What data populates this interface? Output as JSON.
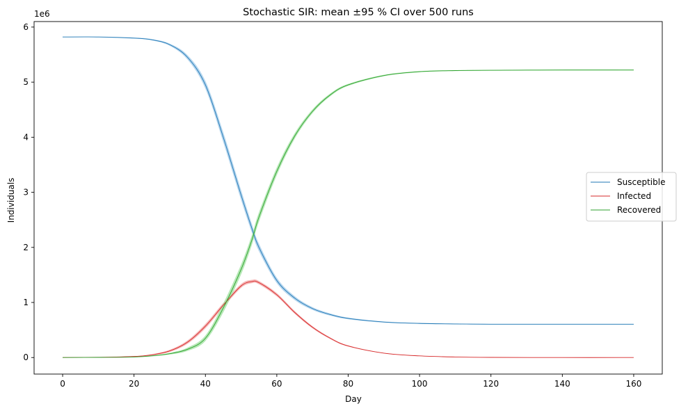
{
  "chart_data": {
    "type": "line",
    "title": "Stochastic SIR: mean ±95 % CI over 500 runs",
    "xlabel": "Day",
    "ylabel": "Individuals",
    "y_offset_label": "1e6",
    "xlim": [
      -8,
      168
    ],
    "ylim": [
      -0.3,
      6.1
    ],
    "y_scale_multiplier": 1000000,
    "xticks": [
      0,
      20,
      40,
      60,
      80,
      100,
      120,
      140,
      160
    ],
    "xtick_labels": [
      "0",
      "20",
      "40",
      "60",
      "80",
      "100",
      "120",
      "140",
      "160"
    ],
    "yticks": [
      0,
      1,
      2,
      3,
      4,
      5,
      6
    ],
    "ytick_labels": [
      "0",
      "1",
      "2",
      "3",
      "4",
      "5",
      "6"
    ],
    "grid": false,
    "legend_position": "center-right",
    "x": [
      0,
      10,
      20,
      25,
      30,
      35,
      40,
      45,
      50,
      53,
      55,
      60,
      65,
      70,
      75,
      80,
      90,
      100,
      110,
      120,
      140,
      160
    ],
    "series": [
      {
        "name": "Susceptible",
        "color": "#1f77b4",
        "band_color": "#9ec8e8",
        "values": [
          5.82,
          5.82,
          5.8,
          5.77,
          5.68,
          5.45,
          4.95,
          4.0,
          2.95,
          2.35,
          2.0,
          1.4,
          1.08,
          0.89,
          0.78,
          0.71,
          0.645,
          0.62,
          0.61,
          0.605,
          0.605,
          0.605
        ],
        "ci_half_width": [
          0.005,
          0.005,
          0.01,
          0.012,
          0.02,
          0.04,
          0.07,
          0.09,
          0.09,
          0.08,
          0.07,
          0.05,
          0.035,
          0.025,
          0.02,
          0.015,
          0.01,
          0.008,
          0.007,
          0.006,
          0.006,
          0.006
        ]
      },
      {
        "name": "Infected",
        "color": "#d62728",
        "band_color": "#f2a0a0",
        "values": [
          0.0,
          0.005,
          0.02,
          0.05,
          0.12,
          0.28,
          0.57,
          0.95,
          1.3,
          1.38,
          1.36,
          1.14,
          0.82,
          0.55,
          0.35,
          0.21,
          0.08,
          0.03,
          0.01,
          0.003,
          0.0,
          0.0
        ],
        "ci_half_width": [
          0.001,
          0.002,
          0.005,
          0.01,
          0.02,
          0.03,
          0.04,
          0.04,
          0.035,
          0.03,
          0.03,
          0.03,
          0.025,
          0.02,
          0.015,
          0.01,
          0.005,
          0.003,
          0.002,
          0.001,
          0.001,
          0.001
        ]
      },
      {
        "name": "Recovered",
        "color": "#2ca02c",
        "band_color": "#9ee09e",
        "values": [
          0.0,
          0.003,
          0.01,
          0.03,
          0.07,
          0.15,
          0.35,
          0.9,
          1.6,
          2.13,
          2.55,
          3.38,
          4.02,
          4.47,
          4.77,
          4.95,
          5.12,
          5.19,
          5.21,
          5.215,
          5.22,
          5.22
        ],
        "ci_half_width": [
          0.001,
          0.002,
          0.005,
          0.008,
          0.015,
          0.03,
          0.05,
          0.08,
          0.09,
          0.09,
          0.085,
          0.07,
          0.05,
          0.035,
          0.025,
          0.018,
          0.012,
          0.01,
          0.008,
          0.008,
          0.008,
          0.008
        ]
      }
    ]
  }
}
